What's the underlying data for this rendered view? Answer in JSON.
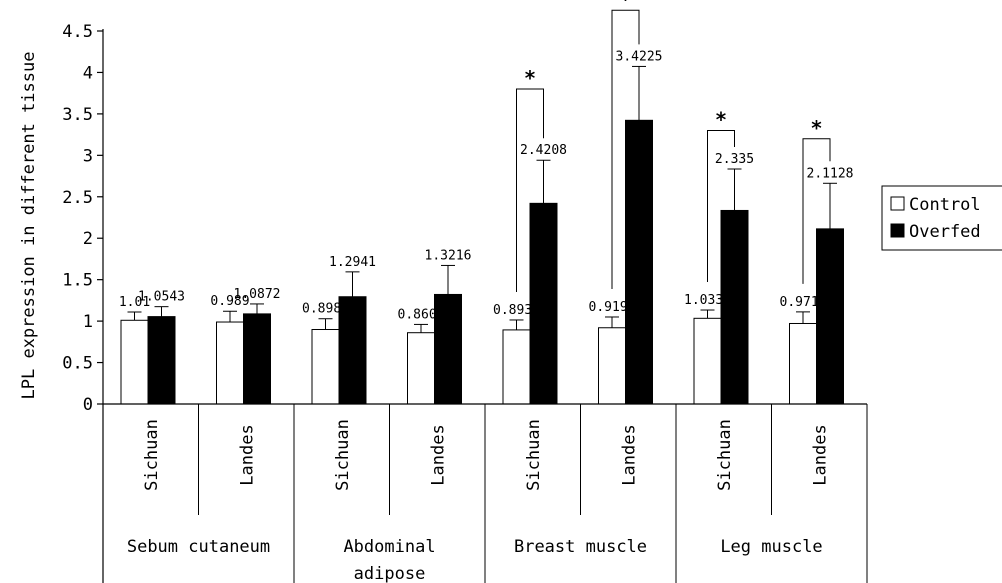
{
  "chart_data": {
    "type": "bar",
    "ylabel": "LPL expression in different tissue",
    "ylim": [
      0,
      4.5
    ],
    "yticks": [
      "0",
      "0.5",
      "1",
      "1.5",
      "2",
      "2.5",
      "3",
      "3.5",
      "4",
      "4.5"
    ],
    "grid": false,
    "legend_position": "right",
    "categories": [
      "Sichuan",
      "Landes",
      "Sichuan",
      "Landes",
      "Sichuan",
      "Landes",
      "Sichuan",
      "Landes"
    ],
    "groups": [
      {
        "label_lines": [
          "Sebum cutaneum"
        ],
        "categories": [
          0,
          1
        ]
      },
      {
        "label_lines": [
          "Abdominal",
          "adipose"
        ],
        "categories": [
          2,
          3
        ]
      },
      {
        "label_lines": [
          "Breast muscle"
        ],
        "categories": [
          4,
          5
        ]
      },
      {
        "label_lines": [
          "Leg muscle"
        ],
        "categories": [
          6,
          7
        ]
      }
    ],
    "series": [
      {
        "name": "Control",
        "color": "#ffffff",
        "values": [
          1.01,
          0.989,
          0.8987,
          0.8601,
          0.8938,
          0.9198,
          1.0338,
          0.9713
        ],
        "labels": [
          "1.01",
          "0.989",
          "0.8987",
          "0.8601",
          "0.8938",
          "0.9198",
          "1.0338",
          "0.9713"
        ],
        "errors": [
          0.1,
          0.13,
          0.13,
          0.1,
          0.12,
          0.13,
          0.1,
          0.14
        ]
      },
      {
        "name": "Overfed",
        "color": "#000000",
        "values": [
          1.0543,
          1.0872,
          1.2941,
          1.3216,
          2.4208,
          3.4225,
          2.335,
          2.1128
        ],
        "labels": [
          "1.0543",
          "1.0872",
          "1.2941",
          "1.3216",
          "2.4208",
          "3.4225",
          "2.335",
          "2.1128"
        ],
        "errors": [
          0.12,
          0.12,
          0.3,
          0.35,
          0.52,
          0.65,
          0.5,
          0.55
        ]
      }
    ],
    "significance": [
      {
        "category": 4,
        "mark": "*",
        "bracket_top": 3.8
      },
      {
        "category": 5,
        "mark": "*",
        "bracket_top": 4.75
      },
      {
        "category": 6,
        "mark": "*",
        "bracket_top": 3.3
      },
      {
        "category": 7,
        "mark": "*",
        "bracket_top": 3.2
      }
    ]
  }
}
